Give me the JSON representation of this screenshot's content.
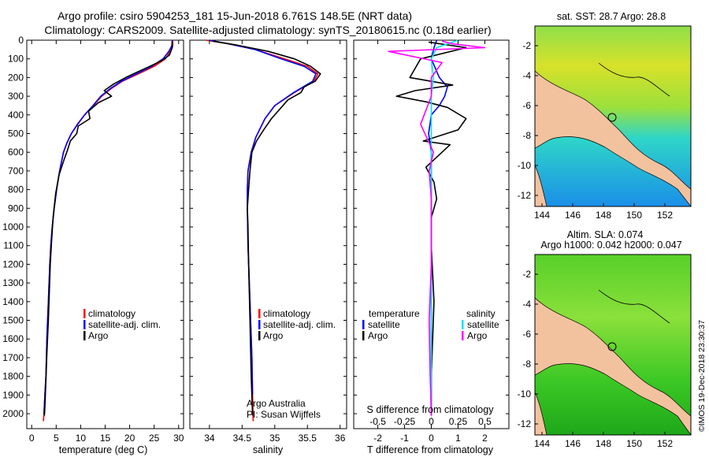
{
  "title": {
    "line1": "Argo profile: csiro 5904253_181 15-Jun-2018 6.761S 148.5E (NRT data)",
    "line2": "Climatology: CARS2009. Satellite-adjusted climatology: synTS_20180615.nc (0.18d earlier)"
  },
  "colors": {
    "climatology": "#ff0000",
    "satellite": "#0000ff",
    "argo": "#000000",
    "sal_satellite": "#00e5ee",
    "sal_argo": "#ff00ff",
    "land": "#f2c29f",
    "grid": "#000000"
  },
  "chart_data": [
    {
      "type": "line",
      "id": "temperature",
      "xlabel": "temperature (deg C)",
      "ylabel": "",
      "xlim": [
        -1,
        31
      ],
      "ylim": [
        2080,
        0
      ],
      "xticks": [
        0,
        5,
        10,
        15,
        20,
        25,
        30
      ],
      "xtick_labels": [
        "0",
        "5",
        "10",
        "15",
        "20",
        "25",
        "30"
      ],
      "yticks": [
        0,
        100,
        200,
        300,
        400,
        500,
        600,
        700,
        800,
        900,
        1000,
        1100,
        1200,
        1300,
        1400,
        1500,
        1600,
        1700,
        1800,
        1900,
        2000
      ],
      "ytick_labels": [
        "0",
        "100",
        "200",
        "300",
        "400",
        "500",
        "600",
        "700",
        "800",
        "900",
        "1000",
        "1100",
        "1200",
        "1300",
        "1400",
        "1500",
        "1600",
        "1700",
        "1800",
        "1900",
        "2000"
      ],
      "legend": [
        "climatology",
        "satellite-adj. clim.",
        "Argo"
      ],
      "series": [
        {
          "name": "climatology",
          "color": "#ff0000",
          "x": [
            28.8,
            28.8,
            28.3,
            27.3,
            25.0,
            21.8,
            18.5,
            16.2,
            14.3,
            12.6,
            10.8,
            9.3,
            8.1,
            7.2,
            6.5,
            5.7,
            5.1,
            4.6,
            4.2,
            3.9,
            3.7,
            3.4,
            3.1,
            2.9,
            2.7,
            2.5,
            2.4
          ],
          "y": [
            0,
            30,
            60,
            100,
            140,
            180,
            220,
            260,
            300,
            350,
            400,
            450,
            500,
            550,
            600,
            700,
            800,
            900,
            1000,
            1100,
            1200,
            1400,
            1600,
            1800,
            1900,
            2000,
            2040
          ]
        },
        {
          "name": "satellite-adj. clim.",
          "color": "#0000ff",
          "x": [
            28.7,
            28.6,
            28.0,
            26.8,
            24.5,
            21.4,
            18.3,
            16.0,
            14.1,
            12.5,
            10.8,
            9.4,
            8.1,
            7.2,
            6.5,
            5.7,
            5.1,
            4.6,
            4.2,
            3.9,
            3.7,
            3.4,
            3.1,
            2.9,
            2.7,
            2.5
          ],
          "y": [
            0,
            30,
            60,
            100,
            140,
            180,
            220,
            260,
            300,
            350,
            400,
            450,
            500,
            550,
            600,
            700,
            800,
            900,
            1000,
            1100,
            1200,
            1400,
            1600,
            1800,
            1900,
            2000
          ]
        },
        {
          "name": "Argo",
          "color": "#000000",
          "x": [
            28.7,
            28.7,
            28.1,
            26.5,
            24.1,
            21.6,
            19.2,
            16.7,
            14.8,
            16.3,
            13.6,
            11.6,
            11.9,
            9.5,
            9.2,
            7.9,
            7.3,
            6.6,
            5.6,
            4.9,
            4.4,
            4.1,
            3.8,
            3.6,
            3.4,
            3.1,
            2.9,
            2.7,
            2.6
          ],
          "y": [
            5,
            40,
            80,
            110,
            140,
            170,
            200,
            235,
            270,
            300,
            335,
            380,
            420,
            460,
            500,
            540,
            590,
            640,
            720,
            820,
            940,
            1060,
            1200,
            1350,
            1500,
            1680,
            1820,
            1960,
            2010
          ]
        }
      ],
      "annotations": []
    },
    {
      "type": "line",
      "id": "salinity",
      "xlabel": "salinity",
      "xlim": [
        33.7,
        36.1
      ],
      "ylim": [
        2080,
        0
      ],
      "xticks": [
        34,
        34.5,
        35,
        35.5,
        36
      ],
      "xtick_labels": [
        "34",
        "34.5",
        "35",
        "35.5",
        "36"
      ],
      "legend": [
        "climatology",
        "satellite-adj. clim.",
        "Argo"
      ],
      "series": [
        {
          "name": "climatology",
          "color": "#ff0000",
          "x": [
            33.95,
            34.3,
            34.7,
            35.15,
            35.5,
            35.66,
            35.6,
            35.3,
            35.0,
            34.85,
            34.71,
            34.64,
            34.59,
            34.58,
            34.58,
            34.59,
            34.61,
            34.63,
            34.65,
            34.66,
            34.67
          ],
          "y": [
            0,
            20,
            50,
            100,
            140,
            180,
            220,
            280,
            350,
            420,
            520,
            600,
            700,
            800,
            900,
            1100,
            1300,
            1500,
            1700,
            1900,
            2040
          ]
        },
        {
          "name": "satellite-adj. clim.",
          "color": "#0000ff",
          "x": [
            34.0,
            34.3,
            34.7,
            35.1,
            35.45,
            35.63,
            35.58,
            35.29,
            35.0,
            34.85,
            34.71,
            34.64,
            34.59,
            34.58,
            34.58,
            34.59,
            34.61,
            34.63,
            34.65,
            34.66
          ],
          "y": [
            0,
            20,
            50,
            100,
            140,
            180,
            220,
            280,
            350,
            420,
            520,
            600,
            700,
            800,
            900,
            1100,
            1300,
            1500,
            1700,
            1900
          ]
        },
        {
          "name": "Argo",
          "color": "#000000",
          "x": [
            34.05,
            34.4,
            34.9,
            35.3,
            35.55,
            35.7,
            35.62,
            35.45,
            35.4,
            35.2,
            35.1,
            34.95,
            34.83,
            34.72,
            34.65,
            34.62,
            34.6,
            34.58,
            34.59,
            34.6,
            34.62,
            34.64,
            34.66
          ],
          "y": [
            5,
            25,
            60,
            100,
            140,
            180,
            220,
            250,
            280,
            320,
            360,
            420,
            480,
            540,
            600,
            700,
            800,
            900,
            1000,
            1200,
            1500,
            1800,
            2010
          ]
        }
      ],
      "annotations": [
        "Argo Australia",
        "PI: Susan Wijffels"
      ]
    },
    {
      "type": "line",
      "id": "differences",
      "xlabel": "T difference from climatology",
      "secondary_xlabel": "S difference from climatology",
      "xlim": [
        -2.9,
        2.9
      ],
      "ylim": [
        2080,
        0
      ],
      "xticks": [
        -2,
        -1,
        0,
        1,
        2
      ],
      "xtick_labels": [
        "-2",
        "-1",
        "0",
        "1",
        "2"
      ],
      "secondary_xticks": [
        -0.5,
        -0.25,
        0,
        0.25,
        0.5
      ],
      "secondary_xtick_labels": [
        "-0.5",
        "-0.25",
        "0",
        "0.25",
        "0.5"
      ],
      "legend_temperature": [
        "satellite",
        "Argo"
      ],
      "legend_salinity": [
        "satellite",
        "Argo"
      ],
      "legend_titles": [
        "temperature",
        "salinity"
      ],
      "series": [
        {
          "name": "T satellite - clim",
          "color": "#0000ff",
          "x": [
            0.2,
            0.1,
            0.0,
            0.3,
            0.6,
            0.5,
            0.3,
            0.0,
            -0.1,
            0.0,
            0.0,
            0.0,
            0.0,
            0.0,
            0.0
          ],
          "y": [
            0,
            40,
            100,
            200,
            250,
            300,
            350,
            400,
            500,
            600,
            800,
            1000,
            1400,
            1800,
            2000
          ]
        },
        {
          "name": "T Argo - clim",
          "color": "#000000",
          "x": [
            -0.1,
            1.3,
            -0.4,
            -0.8,
            0.8,
            -0.6,
            -1.3,
            -0.2,
            0.6,
            1.3,
            1.0,
            -0.3,
            0.7,
            0.4,
            -0.2,
            0.1,
            0.2,
            0.0,
            0.0,
            0.1,
            0.0,
            0.0
          ],
          "y": [
            10,
            40,
            100,
            200,
            240,
            270,
            300,
            330,
            360,
            420,
            480,
            540,
            560,
            600,
            680,
            760,
            850,
            950,
            1100,
            1400,
            1800,
            2010
          ]
        },
        {
          "name": "S satellite - clim",
          "color": "#00e5ee",
          "x": [
            0.25,
            0.05,
            0.0,
            0.02,
            0.0,
            0.0,
            0.0,
            0.0,
            0.0,
            0.0,
            0.0,
            0.0
          ],
          "y": [
            0,
            40,
            100,
            200,
            300,
            400,
            500,
            700,
            900,
            1200,
            1600,
            2000
          ]
        },
        {
          "name": "S Argo - clim",
          "color": "#ff00ff",
          "x": [
            0.1,
            0.2,
            0.5,
            -0.4,
            0.1,
            0.0,
            0.0,
            -0.1,
            0.02,
            -0.02,
            0.0,
            0.0,
            0.0,
            -0.02,
            -0.01,
            0.0
          ],
          "y": [
            5,
            20,
            40,
            60,
            120,
            200,
            300,
            450,
            600,
            700,
            850,
            1000,
            1200,
            1500,
            1800,
            2010
          ]
        }
      ],
      "annotations": []
    }
  ],
  "maps": [
    {
      "title": "sat. SST: 28.7 Argo: 28.8",
      "xticks": [
        "144",
        "146",
        "148",
        "150",
        "152"
      ],
      "yticks": [
        "-2",
        "-4",
        "-6",
        "-8",
        "-10",
        "-12"
      ]
    },
    {
      "title_line1": "Altim. SLA: 0.074",
      "title_line2": "Argo h1000: 0.042 h2000: 0.047",
      "xticks": [
        "144",
        "146",
        "148",
        "150",
        "152"
      ],
      "yticks": [
        "-2",
        "-4",
        "-6",
        "-8",
        "-10",
        "-12"
      ]
    }
  ],
  "credit": "©IMOS 19-Dec-2018 23:30:37"
}
